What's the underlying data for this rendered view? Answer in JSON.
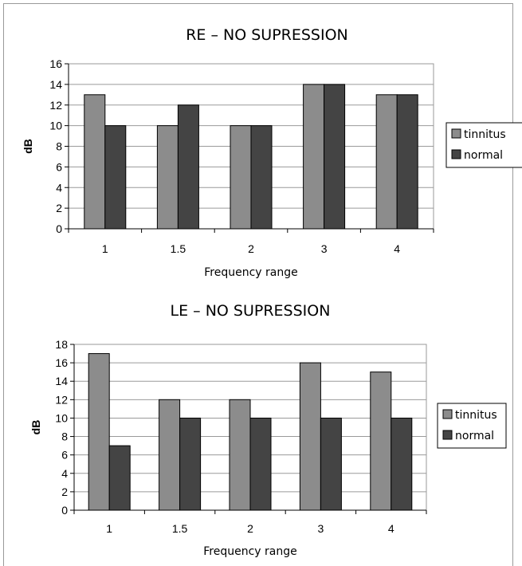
{
  "colors": {
    "tinnitus": "#8c8c8c",
    "normal": "#444444"
  },
  "chart_data": [
    {
      "type": "bar",
      "title": "RE – NO SUPRESSION",
      "xlabel": "Frequency range",
      "ylabel": "dB",
      "categories": [
        "1",
        "1.5",
        "2",
        "3",
        "4"
      ],
      "ylim": [
        0,
        16
      ],
      "ytick_step": 2,
      "grid": true,
      "legend_position": "right",
      "series": [
        {
          "name": "tinnitus",
          "values": [
            13,
            10,
            10,
            14,
            13
          ]
        },
        {
          "name": "normal",
          "values": [
            10,
            12,
            10,
            14,
            13
          ]
        }
      ]
    },
    {
      "type": "bar",
      "title": "LE – NO SUPRESSION",
      "xlabel": "Frequency range",
      "ylabel": "dB",
      "categories": [
        "1",
        "1.5",
        "2",
        "3",
        "4"
      ],
      "ylim": [
        0,
        18
      ],
      "ytick_step": 2,
      "grid": true,
      "legend_position": "right",
      "series": [
        {
          "name": "tinnitus",
          "values": [
            17,
            12,
            12,
            16,
            15
          ]
        },
        {
          "name": "normal",
          "values": [
            7,
            10,
            10,
            10,
            10
          ]
        }
      ]
    }
  ]
}
